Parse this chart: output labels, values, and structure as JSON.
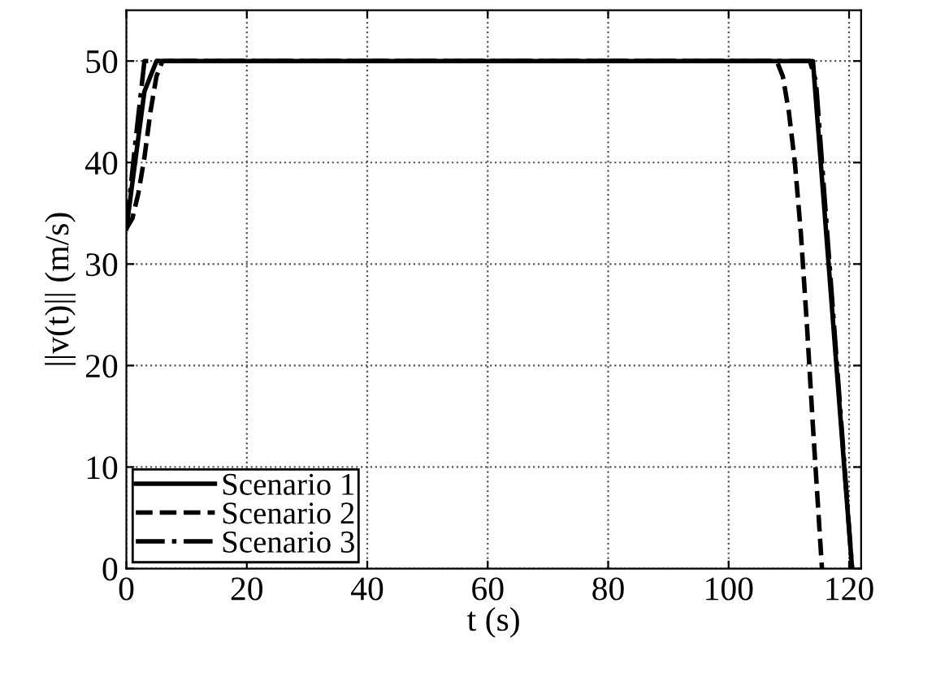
{
  "chart_data": {
    "type": "line",
    "xlabel": "t (s)",
    "ylabel": "||v(t)|| (m/s)",
    "xlim": [
      0,
      122
    ],
    "xticks": [
      0,
      20,
      40,
      60,
      80,
      100,
      120
    ],
    "ylim": [
      0,
      55
    ],
    "yticks": [
      0,
      10,
      20,
      30,
      40,
      50
    ],
    "grid": true,
    "legend": "bottom left",
    "marker": "none",
    "series": [
      {
        "name": "Scenario 1",
        "color": "#000000",
        "line_style": "solid",
        "x": [
          0,
          3,
          5,
          114,
          120.5
        ],
        "values": [
          33.5,
          47,
          50,
          50,
          0
        ]
      },
      {
        "name": "Scenario 2",
        "color": "#000000",
        "line_style": "dashed",
        "x": [
          0,
          1,
          2,
          3,
          4,
          5,
          6,
          108,
          109,
          110,
          111,
          112,
          113,
          114,
          115.5
        ],
        "values": [
          33.5,
          34.5,
          37,
          40.5,
          45,
          48.5,
          50,
          50,
          48.5,
          45,
          40,
          33,
          24,
          14,
          0
        ]
      },
      {
        "name": "Scenario 3",
        "color": "#000000",
        "line_style": "dashdot",
        "x": [
          0,
          1.5,
          3,
          113.5,
          114.5,
          120.5
        ],
        "values": [
          33.5,
          42,
          50,
          50,
          48,
          0
        ]
      }
    ]
  }
}
